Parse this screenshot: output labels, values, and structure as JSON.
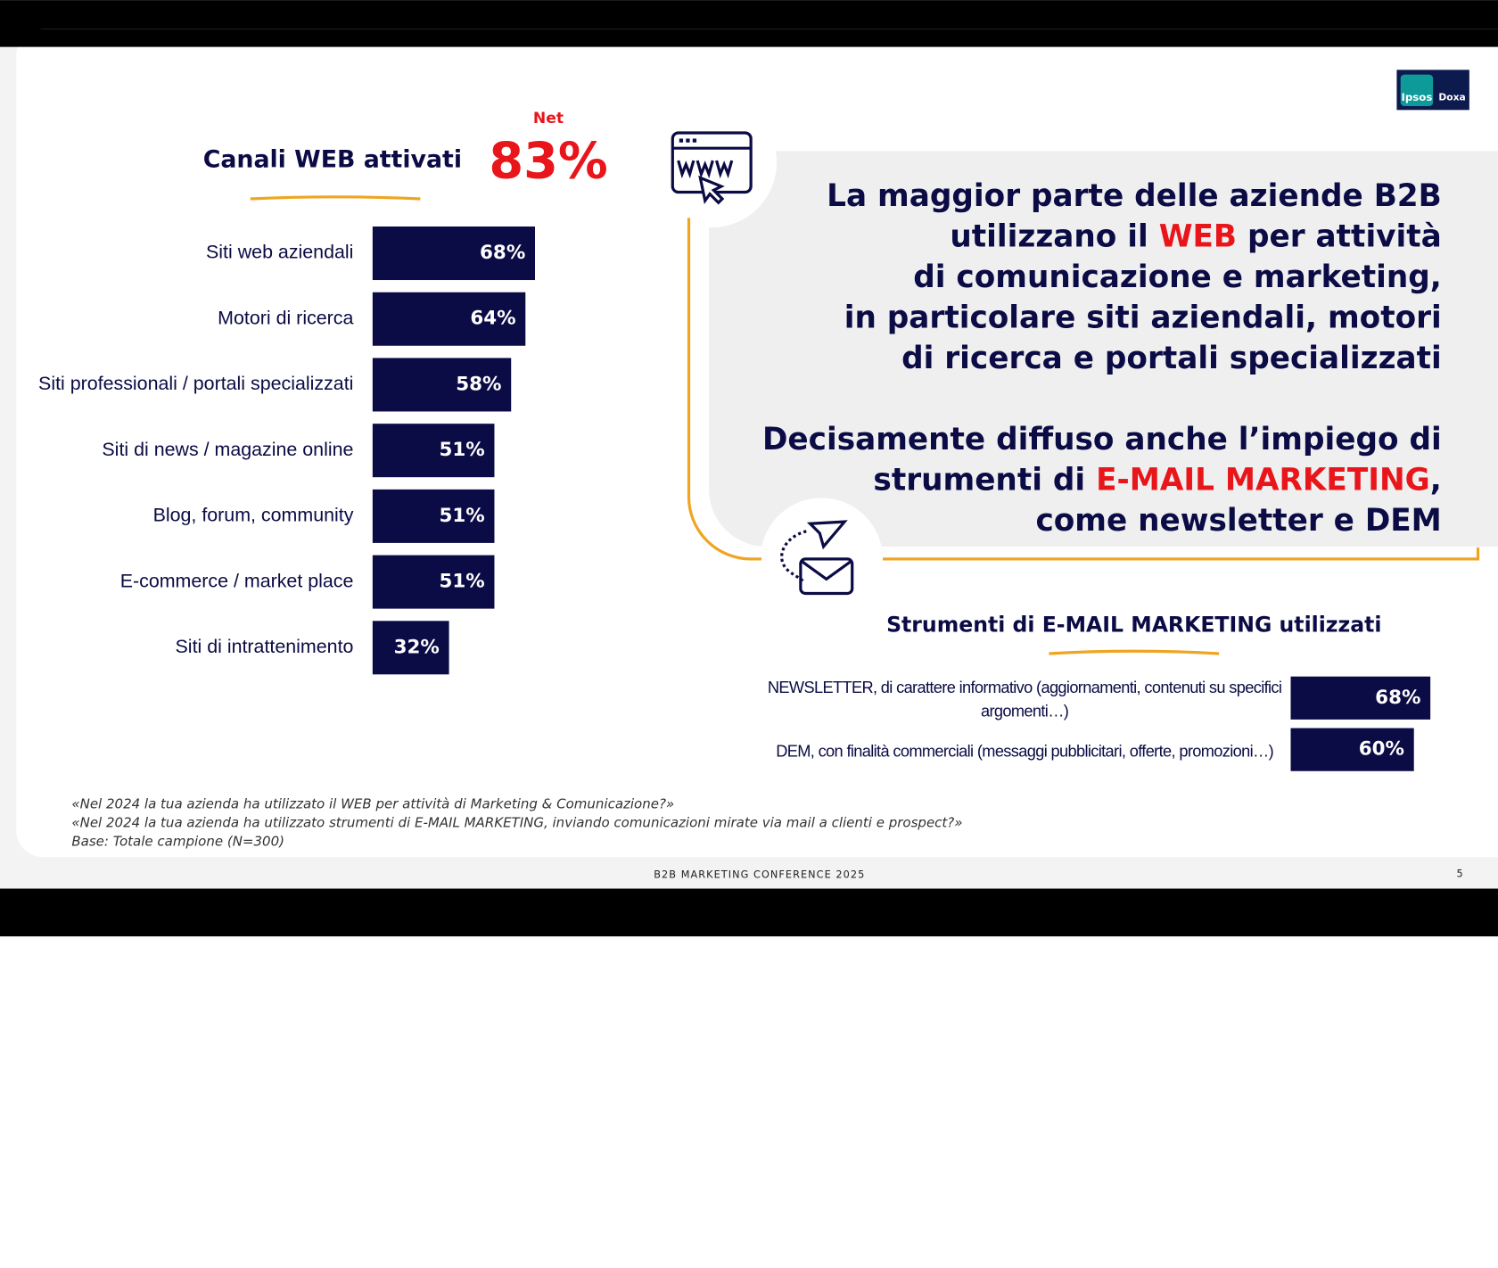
{
  "logo": {
    "left": "Ipsos",
    "right": "Doxa"
  },
  "chart_data": [
    {
      "type": "bar",
      "orientation": "horizontal",
      "title": "Canali WEB attivati",
      "net_label": "Net",
      "net_value": 83,
      "net_value_label": "83%",
      "categories": [
        "Siti web aziendali",
        "Motori di ricerca",
        "Siti professionali / portali specializzati",
        "Siti di news / magazine online",
        "Blog, forum, community",
        "E-commerce / market place",
        "Siti di intrattenimento"
      ],
      "values": [
        68,
        64,
        58,
        51,
        51,
        51,
        32
      ],
      "value_labels": [
        "68%",
        "64%",
        "58%",
        "51%",
        "51%",
        "51%",
        "32%"
      ],
      "color": "#0b0b45"
    },
    {
      "type": "bar",
      "orientation": "horizontal",
      "title": "Strumenti di E-MAIL MARKETING utilizzati",
      "categories": [
        "NEWSLETTER, di carattere informativo (aggiornamenti, contenuti su specifici argomenti…)",
        "DEM, con finalità commerciali (messaggi pubblicitari, offerte, promozioni…)"
      ],
      "values": [
        68,
        60
      ],
      "value_labels": [
        "68%",
        "60%"
      ],
      "color": "#0b0b45"
    }
  ],
  "headline": {
    "color": "#0b0b45",
    "paragraphs": [
      [
        [
          {
            "text": "La maggior parte delle aziende B2B"
          }
        ],
        [
          {
            "text": "utilizzano il "
          },
          {
            "text": "WEB",
            "color": "#e8151b"
          },
          {
            "text": " per attività"
          }
        ],
        [
          {
            "text": "di comunicazione e marketing,"
          }
        ],
        [
          {
            "text": "in particolare siti aziendali, motori"
          }
        ],
        [
          {
            "text": "di ricerca e portali specializzati"
          }
        ]
      ],
      [
        [
          {
            "text": "Decisamente diffuso anche l’impiego di"
          }
        ],
        [
          {
            "text": "strumenti di "
          },
          {
            "text": "E-MAIL MARKETING",
            "color": "#e8151b"
          },
          {
            "text": ","
          }
        ],
        [
          {
            "text": "come newsletter e DEM"
          }
        ]
      ]
    ]
  },
  "footnotes": [
    "«Nel 2024 la tua azienda ha utilizzato il WEB per attività di Marketing & Comunicazione?»",
    "«Nel 2024 la tua azienda ha utilizzato strumenti di E-MAIL MARKETING, inviando comunicazioni mirate via mail a clienti e prospect?»",
    "Base: Totale campione (N=300)"
  ],
  "footer": {
    "event": "B2B MARKETING CONFERENCE 2025",
    "page": 5
  }
}
